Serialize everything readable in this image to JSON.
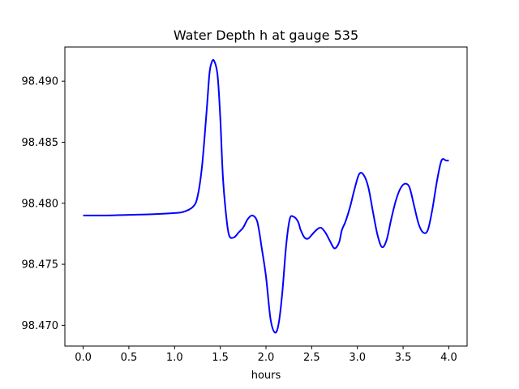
{
  "chart_data": {
    "type": "line",
    "title": "Water Depth h at gauge 535",
    "xlabel": "hours",
    "ylabel": "",
    "xlim": [
      -0.2,
      4.2
    ],
    "ylim": [
      98.4683,
      98.4928
    ],
    "grid": false,
    "xticks": [
      "0.0",
      "0.5",
      "1.0",
      "1.5",
      "2.0",
      "2.5",
      "3.0",
      "3.5",
      "4.0"
    ],
    "yticks": [
      "98.470",
      "98.475",
      "98.480",
      "98.485",
      "98.490"
    ],
    "series": [
      {
        "color": "#0000ff",
        "x": [
          0.0,
          0.25,
          0.5,
          0.75,
          1.0,
          1.1,
          1.2,
          1.25,
          1.3,
          1.35,
          1.38,
          1.4,
          1.43,
          1.47,
          1.5,
          1.53,
          1.57,
          1.6,
          1.65,
          1.7,
          1.75,
          1.8,
          1.85,
          1.9,
          1.93,
          1.95,
          2.0,
          2.05,
          2.1,
          2.14,
          2.18,
          2.22,
          2.26,
          2.3,
          2.35,
          2.38,
          2.42,
          2.46,
          2.5,
          2.55,
          2.6,
          2.65,
          2.7,
          2.75,
          2.8,
          2.83,
          2.87,
          2.92,
          2.97,
          3.02,
          3.07,
          3.12,
          3.17,
          3.22,
          3.27,
          3.32,
          3.37,
          3.42,
          3.47,
          3.52,
          3.57,
          3.62,
          3.67,
          3.72,
          3.77,
          3.82,
          3.87,
          3.92,
          3.97,
          4.0
        ],
        "y": [
          98.479,
          98.479,
          98.47905,
          98.4791,
          98.4792,
          98.4793,
          98.4797,
          98.4805,
          98.483,
          98.4875,
          98.4905,
          98.4914,
          98.4917,
          98.4905,
          98.487,
          98.482,
          98.4786,
          98.4773,
          98.4772,
          98.4776,
          98.478,
          98.4787,
          98.479,
          98.4786,
          98.4775,
          98.4765,
          98.474,
          98.4705,
          98.4694,
          98.4702,
          98.4728,
          98.4765,
          98.4787,
          98.4789,
          98.4785,
          98.4778,
          98.4772,
          98.4771,
          98.4774,
          98.4778,
          98.478,
          98.4776,
          98.4769,
          98.4763,
          98.4768,
          98.4778,
          98.4785,
          98.4797,
          98.4812,
          98.4824,
          98.4823,
          98.4813,
          98.4793,
          98.4774,
          98.4764,
          98.477,
          98.4787,
          98.4802,
          98.4812,
          98.4816,
          98.4813,
          98.4798,
          98.4783,
          98.4776,
          98.4778,
          98.4795,
          98.4818,
          98.4835,
          98.4835,
          98.4835
        ]
      }
    ]
  }
}
